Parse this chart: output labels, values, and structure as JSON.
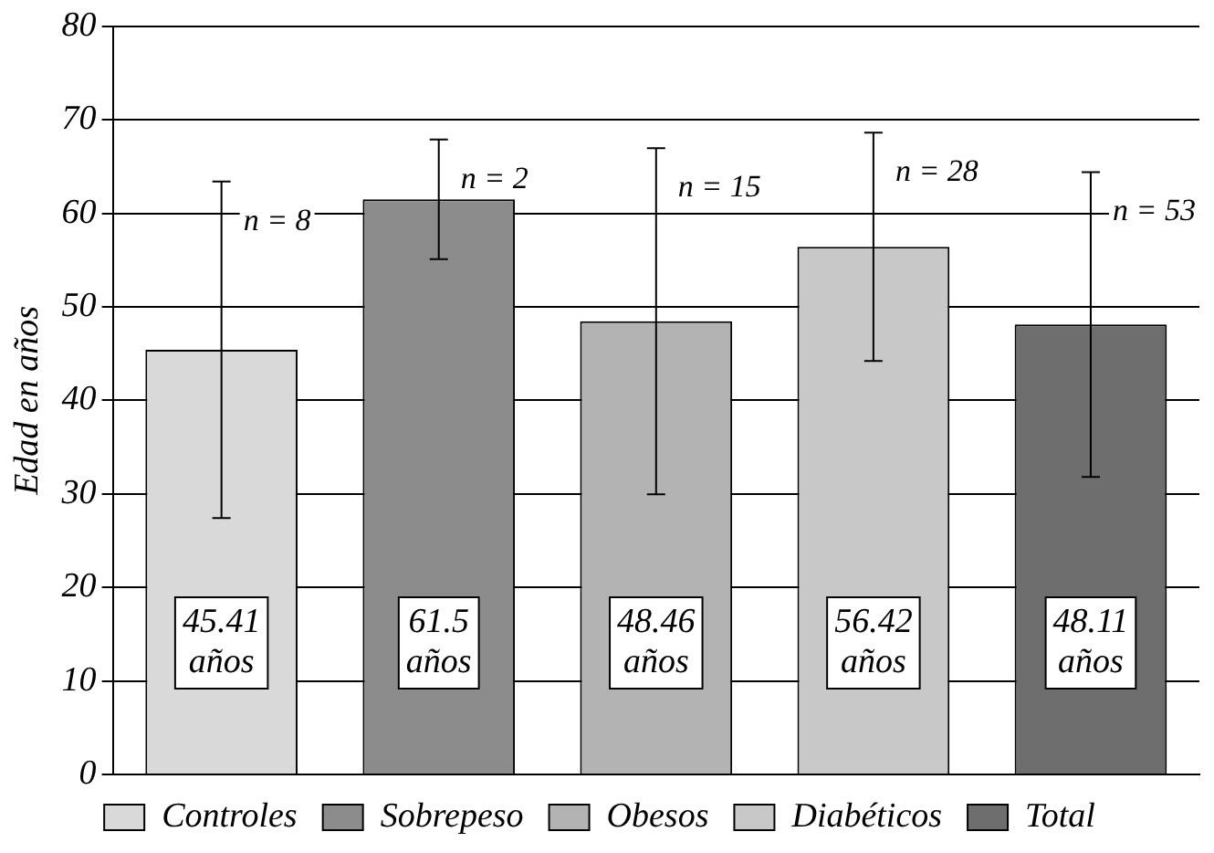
{
  "chart_data": {
    "type": "bar",
    "ylabel": "Edad en años",
    "categories": [
      null,
      null,
      null,
      null,
      null
    ],
    "series": [
      {
        "name": "Controles",
        "color": "#d9d9d9",
        "values": [
          45.41,
          null,
          null,
          null,
          null
        ],
        "errors": [
          18,
          null,
          null,
          null,
          null
        ],
        "value_labels": [
          "45.41 años",
          null,
          null,
          null,
          null
        ]
      },
      {
        "name": "Sobrepeso",
        "color": "#8c8c8c",
        "values": [
          null,
          61.5,
          null,
          null,
          null
        ],
        "errors": [
          null,
          6.4,
          null,
          null,
          null
        ],
        "value_labels": [
          null,
          "61.5 años",
          null,
          null,
          null
        ]
      },
      {
        "name": "Obesos",
        "color": "#b3b3b3",
        "values": [
          null,
          null,
          48.46,
          null,
          null
        ],
        "errors": [
          null,
          null,
          18.5,
          null,
          null
        ],
        "value_labels": [
          null,
          null,
          "48.46 años",
          null,
          null
        ]
      },
      {
        "name": "Diabéticos",
        "color": "#c8c8c8",
        "values": [
          null,
          null,
          null,
          56.42,
          null
        ],
        "errors": [
          null,
          null,
          null,
          12.2,
          null
        ],
        "value_labels": [
          null,
          null,
          null,
          "56.42 años",
          null
        ]
      },
      {
        "name": "Total",
        "color": "#6e6e6e",
        "values": [
          null,
          null,
          null,
          null,
          48.11
        ],
        "errors": [
          null,
          null,
          null,
          null,
          16.3
        ],
        "value_labels": [
          null,
          null,
          null,
          null,
          "48.11 años"
        ]
      }
    ],
    "annotations": [
      "n = 8",
      "n = 2",
      "n = 15",
      "n = 28",
      "n = 53"
    ],
    "ylim": [
      0,
      80
    ],
    "yticks": [
      0,
      10,
      20,
      30,
      40,
      50,
      60,
      70,
      80
    ],
    "grid": "y",
    "legend": "bottom",
    "tick_labels": "y"
  }
}
